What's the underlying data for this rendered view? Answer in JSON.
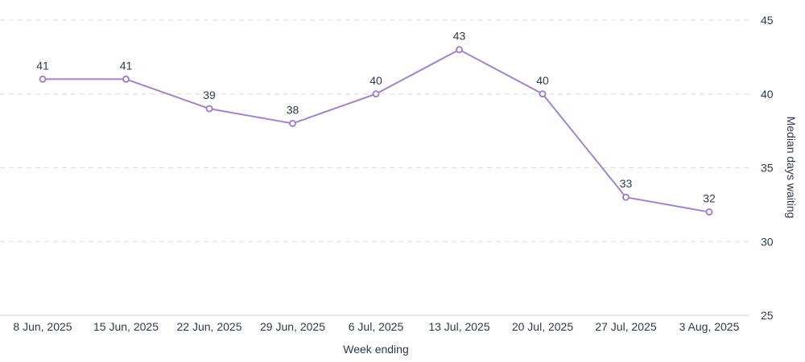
{
  "chart_data": {
    "type": "line",
    "title": "",
    "xlabel": "Week ending",
    "ylabel": "Median days waiting",
    "categories": [
      "8 Jun, 2025",
      "15 Jun, 2025",
      "22 Jun, 2025",
      "29 Jun, 2025",
      "6 Jul, 2025",
      "13 Jul, 2025",
      "20 Jul, 2025",
      "27 Jul, 2025",
      "3 Aug, 2025"
    ],
    "series": [
      {
        "name": "Median days waiting",
        "values": [
          41,
          41,
          39,
          38,
          40,
          43,
          40,
          33,
          32
        ],
        "color": "#a383c8"
      }
    ],
    "ylim": [
      25,
      45
    ],
    "yticks": [
      25,
      30,
      35,
      40,
      45
    ],
    "grid": true,
    "y_axis_side": "right"
  }
}
